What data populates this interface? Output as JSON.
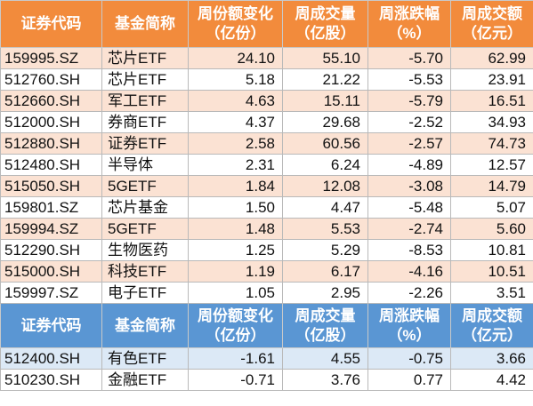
{
  "header_top": {
    "code": "证券代码",
    "name": "基金简称",
    "share_change": [
      "周份额变化",
      "（亿份）"
    ],
    "volume": [
      "周成交量",
      "（亿股）"
    ],
    "pct": [
      "周涨跌幅",
      "（%）"
    ],
    "turnover": [
      "周成交额",
      "（亿元）"
    ]
  },
  "rows_top": [
    {
      "code": "159995.SZ",
      "name": "芯片ETF",
      "share_change": "24.10",
      "volume": "55.10",
      "pct": "-5.70",
      "turnover": "62.99"
    },
    {
      "code": "512760.SH",
      "name": "芯片ETF",
      "share_change": "5.18",
      "volume": "21.22",
      "pct": "-5.53",
      "turnover": "23.91"
    },
    {
      "code": "512660.SH",
      "name": "军工ETF",
      "share_change": "4.63",
      "volume": "15.11",
      "pct": "-5.79",
      "turnover": "16.51"
    },
    {
      "code": "512000.SH",
      "name": "券商ETF",
      "share_change": "4.37",
      "volume": "29.68",
      "pct": "-2.52",
      "turnover": "34.93"
    },
    {
      "code": "512880.SH",
      "name": "证券ETF",
      "share_change": "2.58",
      "volume": "60.56",
      "pct": "-2.57",
      "turnover": "74.73"
    },
    {
      "code": "512480.SH",
      "name": "半导体",
      "share_change": "2.31",
      "volume": "6.24",
      "pct": "-4.89",
      "turnover": "12.57"
    },
    {
      "code": "515050.SH",
      "name": "5GETF",
      "share_change": "1.84",
      "volume": "12.08",
      "pct": "-3.08",
      "turnover": "14.79"
    },
    {
      "code": "159801.SZ",
      "name": "芯片基金",
      "share_change": "1.50",
      "volume": "4.47",
      "pct": "-5.48",
      "turnover": "5.07"
    },
    {
      "code": "159994.SZ",
      "name": "5GETF",
      "share_change": "1.48",
      "volume": "5.53",
      "pct": "-2.74",
      "turnover": "5.60"
    },
    {
      "code": "512290.SH",
      "name": "生物医药",
      "share_change": "1.25",
      "volume": "5.29",
      "pct": "-8.53",
      "turnover": "10.81"
    },
    {
      "code": "515000.SH",
      "name": "科技ETF",
      "share_change": "1.19",
      "volume": "6.17",
      "pct": "-4.16",
      "turnover": "10.51"
    },
    {
      "code": "159997.SZ",
      "name": "电子ETF",
      "share_change": "1.05",
      "volume": "2.95",
      "pct": "-2.26",
      "turnover": "3.51"
    }
  ],
  "header_bottom": {
    "code": "证券代码",
    "name": "基金简称",
    "share_change": [
      "周份额变化",
      "（亿份）"
    ],
    "volume": [
      "周成交量",
      "（亿股）"
    ],
    "pct": [
      "周涨跌幅",
      "（%）"
    ],
    "turnover": [
      "周成交额",
      "（亿元）"
    ]
  },
  "rows_bottom": [
    {
      "code": "512400.SH",
      "name": "有色ETF",
      "share_change": "-1.61",
      "volume": "4.55",
      "pct": "-0.75",
      "turnover": "3.66"
    },
    {
      "code": "510230.SH",
      "name": "金融ETF",
      "share_change": "-0.71",
      "volume": "3.76",
      "pct": "0.77",
      "turnover": "4.42"
    }
  ],
  "colors": {
    "top_header_bg": "#f28b3c",
    "top_alt_row_bg": "#fbe2d3",
    "bottom_header_bg": "#5a96d3",
    "bottom_alt_row_bg": "#dce9f6"
  }
}
